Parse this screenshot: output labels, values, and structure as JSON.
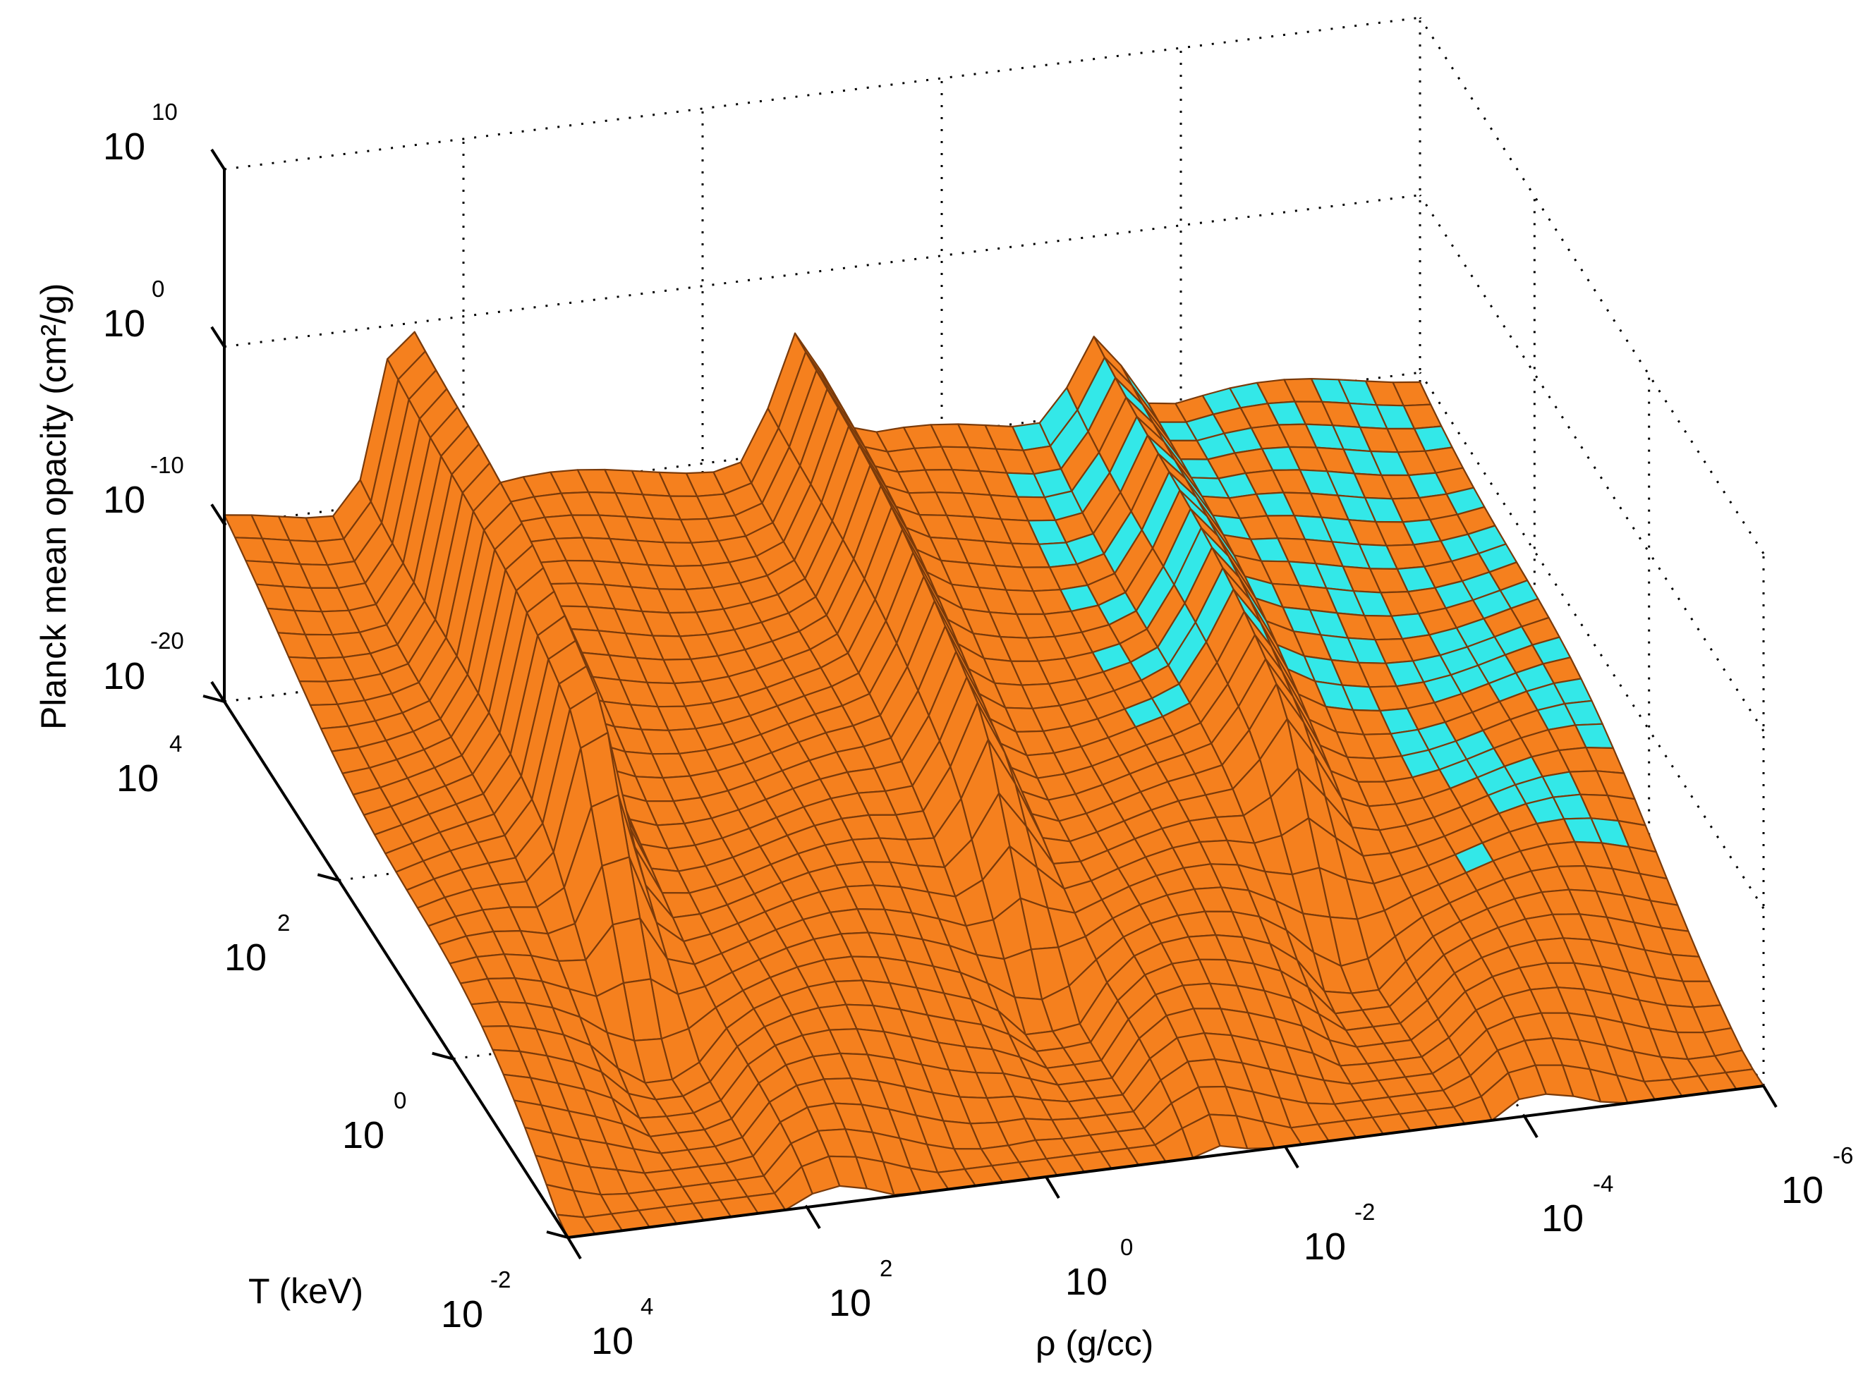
{
  "chart_data": {
    "type": "surface",
    "xlabel": "ρ (g/cc)",
    "ylabel": "T (keV)",
    "zlabel": "Planck mean opacity (cm²/g)",
    "x_scale": "log",
    "y_scale": "log",
    "z_scale": "log",
    "xlim": [
      1e-06,
      10000.0
    ],
    "ylim": [
      0.01,
      10000.0
    ],
    "zlim": [
      1e-20,
      10000000000.0
    ],
    "grid": true,
    "x_ticks": [
      {
        "base": "10",
        "exp": "4"
      },
      {
        "base": "10",
        "exp": "2"
      },
      {
        "base": "10",
        "exp": "0"
      },
      {
        "base": "10",
        "exp": "-2"
      },
      {
        "base": "10",
        "exp": "-4"
      },
      {
        "base": "10",
        "exp": "-6"
      }
    ],
    "y_ticks": [
      {
        "base": "10",
        "exp": "-2"
      },
      {
        "base": "10",
        "exp": "0"
      },
      {
        "base": "10",
        "exp": "2"
      },
      {
        "base": "10",
        "exp": "4"
      }
    ],
    "z_ticks": [
      {
        "base": "10",
        "exp": "-20"
      },
      {
        "base": "10",
        "exp": "-10"
      },
      {
        "base": "10",
        "exp": "0"
      },
      {
        "base": "10",
        "exp": "10"
      }
    ],
    "surface_colors": {
      "main": "#F5801E",
      "edge": "#7A3A0A",
      "alt": "#33E8E8"
    },
    "ridges_log_rho": [
      2.5,
      -0.8,
      -3.3
    ],
    "ridge_heights_log_kappa": [
      11,
      7,
      5
    ],
    "surface_z_at_T_corners_log_kappa": {
      "T_max": -10,
      "T_min": -20
    }
  }
}
